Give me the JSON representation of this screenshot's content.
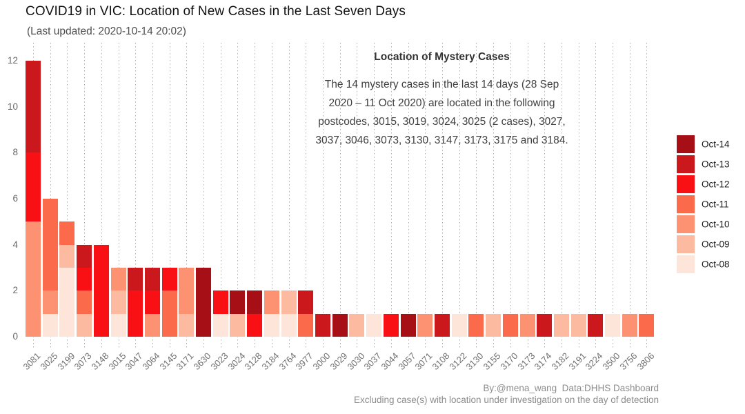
{
  "title": "COVID19 in VIC: Location of New Cases in the Last Seven Days",
  "subtitle": "(Last updated: 2020-10-14 20:02)",
  "annotation": {
    "title": "Location of Mystery Cases",
    "body": "The 14 mystery cases in the last 14 days (28 Sep\n2020 – 11 Oct 2020) are located in the following\npostcodes, 3015, 3019, 3024, 3025 (2 cases), 3027,\n3037, 3046, 3073, 3130, 3147, 3173, 3175 and 3184."
  },
  "footer": {
    "credit": "By:@mena_wang  Data:DHHS Dashboard",
    "note": "Excluding case(s) with location under investigation on the day of detection"
  },
  "chart_data": {
    "type": "bar",
    "stacked": true,
    "grid": "vertical-dotted",
    "legend_position": "right",
    "legend_order": [
      "Oct-14",
      "Oct-13",
      "Oct-12",
      "Oct-11",
      "Oct-10",
      "Oct-09",
      "Oct-08"
    ],
    "ylim": [
      0,
      12
    ],
    "yticks": [
      0,
      2,
      4,
      6,
      8,
      10,
      12
    ],
    "categories": [
      "3081",
      "3025",
      "3199",
      "3073",
      "3148",
      "3015",
      "3047",
      "3064",
      "3145",
      "3171",
      "3630",
      "3023",
      "3024",
      "3128",
      "3184",
      "3764",
      "3977",
      "3000",
      "3029",
      "3030",
      "3037",
      "3044",
      "3057",
      "3071",
      "3108",
      "3122",
      "3130",
      "3155",
      "3170",
      "3173",
      "3174",
      "3182",
      "3191",
      "3224",
      "3500",
      "3756",
      "3806"
    ],
    "series": [
      {
        "name": "Oct-08",
        "color": "#fee5d9",
        "values": [
          0,
          1,
          3,
          0,
          0,
          1,
          0,
          0,
          0,
          0,
          0,
          1,
          0,
          0,
          1,
          1,
          0,
          0,
          0,
          0,
          1,
          0,
          0,
          0,
          0,
          1,
          0,
          0,
          0,
          0,
          0,
          0,
          0,
          0,
          1,
          0,
          0
        ]
      },
      {
        "name": "Oct-09",
        "color": "#fcbba1",
        "values": [
          0,
          0,
          1,
          1,
          0,
          1,
          0,
          0,
          0,
          1,
          0,
          0,
          1,
          0,
          0,
          1,
          0,
          0,
          0,
          1,
          0,
          0,
          0,
          0,
          0,
          0,
          0,
          1,
          0,
          0,
          0,
          1,
          1,
          0,
          0,
          0,
          0
        ]
      },
      {
        "name": "Oct-10",
        "color": "#fc9272",
        "values": [
          5,
          1,
          0,
          0,
          0,
          1,
          0,
          1,
          0,
          2,
          0,
          0,
          0,
          0,
          1,
          0,
          0,
          0,
          0,
          0,
          0,
          0,
          0,
          1,
          0,
          0,
          0,
          0,
          0,
          1,
          0,
          0,
          0,
          0,
          0,
          1,
          0
        ]
      },
      {
        "name": "Oct-11",
        "color": "#fb6a4a",
        "values": [
          0,
          4,
          1,
          1,
          0,
          0,
          0,
          0,
          2,
          0,
          0,
          0,
          0,
          0,
          0,
          0,
          1,
          0,
          0,
          0,
          0,
          0,
          0,
          0,
          0,
          0,
          1,
          0,
          1,
          0,
          0,
          0,
          0,
          0,
          0,
          0,
          1
        ]
      },
      {
        "name": "Oct-12",
        "color": "#f91014",
        "values": [
          3,
          0,
          0,
          1,
          4,
          0,
          2,
          1,
          1,
          0,
          0,
          1,
          0,
          1,
          0,
          0,
          0,
          0,
          0,
          0,
          0,
          1,
          0,
          0,
          0,
          0,
          0,
          0,
          0,
          0,
          0,
          0,
          0,
          0,
          0,
          0,
          0
        ]
      },
      {
        "name": "Oct-13",
        "color": "#cb181d",
        "values": [
          4,
          0,
          0,
          1,
          0,
          0,
          1,
          1,
          0,
          0,
          0,
          0,
          0,
          0,
          0,
          0,
          1,
          1,
          0,
          0,
          0,
          0,
          0,
          0,
          1,
          0,
          0,
          0,
          0,
          0,
          1,
          0,
          0,
          1,
          0,
          0,
          0
        ]
      },
      {
        "name": "Oct-14",
        "color": "#a50f15",
        "values": [
          0,
          0,
          0,
          0,
          0,
          0,
          0,
          0,
          0,
          0,
          3,
          0,
          1,
          1,
          0,
          0,
          0,
          0,
          1,
          0,
          0,
          0,
          1,
          0,
          0,
          0,
          0,
          0,
          0,
          0,
          0,
          0,
          0,
          0,
          0,
          0,
          0
        ]
      }
    ]
  }
}
